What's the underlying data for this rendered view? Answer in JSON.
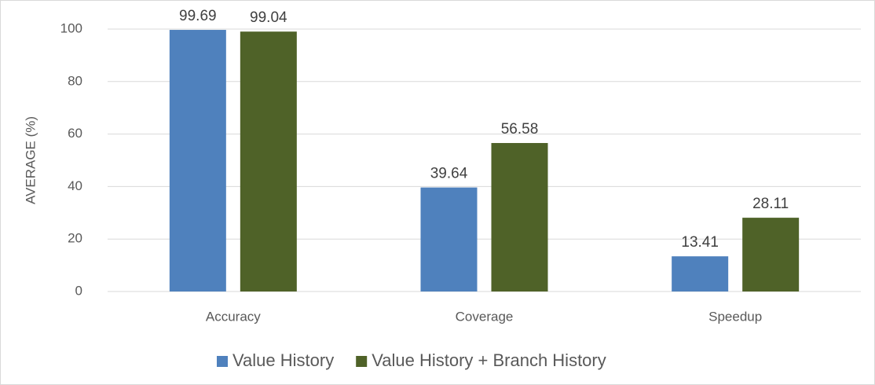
{
  "chart_data": {
    "type": "bar",
    "y_label": "AVERAGE (%)",
    "categories": [
      "Accuracy",
      "Coverage",
      "Speedup"
    ],
    "series": [
      {
        "name": "Value History",
        "color": "#4f81bd",
        "values": [
          99.69,
          39.64,
          13.41
        ]
      },
      {
        "name": "Value History + Branch History",
        "color": "#4f6228",
        "values": [
          99.04,
          56.58,
          28.11
        ]
      }
    ],
    "ylim": [
      0,
      100
    ],
    "yticks": [
      0,
      20,
      40,
      60,
      80,
      100
    ],
    "grid": true,
    "legend": "bottom"
  }
}
